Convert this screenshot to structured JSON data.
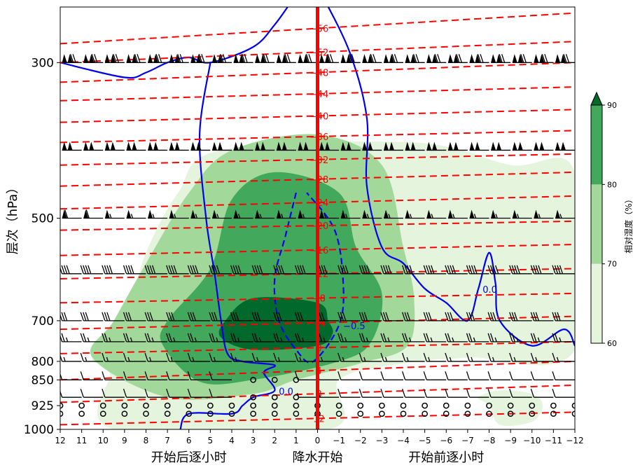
{
  "chart_data": {
    "type": "contour",
    "ylabel": "层次（hPa）",
    "y_scale": "log",
    "y_reversed": true,
    "ylim": [
      1000,
      250
    ],
    "y_ticks": [
      300,
      500,
      700,
      800,
      850,
      925,
      1000
    ],
    "xlim": [
      12,
      -12
    ],
    "x_ticks": [
      12,
      11,
      10,
      9,
      8,
      7,
      6,
      5,
      4,
      3,
      2,
      1,
      0,
      -1,
      -2,
      -3,
      -4,
      -5,
      -6,
      -7,
      -8,
      -9,
      -10,
      -11,
      -12
    ],
    "x_tick_labels": [
      "12",
      "11",
      "10",
      "9",
      "8",
      "7",
      "6",
      "5",
      "4",
      "3",
      "2",
      "1",
      "0",
      "−1",
      "−2",
      "−3",
      "−4",
      "−5",
      "−6",
      "−7",
      "−8",
      "−9",
      "−10",
      "−11",
      "−12"
    ],
    "x_section_labels": [
      "开始后逐小时",
      "降水开始",
      "开始前逐小时"
    ],
    "onset_line_x": 0,
    "onset_line_color": "#ff0000",
    "colorbar": {
      "label": "相对湿度（%）",
      "levels": [
        60,
        70,
        80,
        90
      ],
      "colors": [
        "#e4f4dd",
        "#a2d89a",
        "#41a85c",
        "#00692b"
      ],
      "extend": "max"
    },
    "humidity_fill": [
      {
        "level": 60,
        "polygon": [
          [
            9.5,
            1000
          ],
          [
            9.7,
            830
          ],
          [
            10.5,
            790
          ],
          [
            9,
            700
          ],
          [
            8,
            560
          ],
          [
            6.5,
            460
          ],
          [
            4.5,
            400
          ],
          [
            -4.5,
            390
          ],
          [
            -9,
            420
          ],
          [
            -12,
            430
          ],
          [
            -12,
            770
          ],
          [
            -7,
            790
          ],
          [
            -4,
            805
          ],
          [
            -1,
            850
          ],
          [
            -0.5,
            1000
          ]
        ]
      },
      {
        "level": 70,
        "polygon": [
          [
            7,
            900
          ],
          [
            10.5,
            790
          ],
          [
            9.5,
            700
          ],
          [
            8,
            580
          ],
          [
            6,
            460
          ],
          [
            4,
            400
          ],
          [
            0,
            380
          ],
          [
            -3,
            420
          ],
          [
            -4,
            550
          ],
          [
            -4.5,
            650
          ],
          [
            -4.2,
            760
          ],
          [
            -2,
            805
          ],
          [
            1,
            850
          ],
          [
            3,
            890
          ]
        ]
      },
      {
        "level": 80,
        "polygon": [
          [
            5.5,
            855
          ],
          [
            7.2,
            760
          ],
          [
            7,
            700
          ],
          [
            5,
            590
          ],
          [
            4,
            470
          ],
          [
            2,
            430
          ],
          [
            -1,
            460
          ],
          [
            -1.8,
            550
          ],
          [
            -3,
            640
          ],
          [
            -2.5,
            750
          ],
          [
            -1,
            800
          ],
          [
            3,
            850
          ]
        ]
      },
      {
        "level": 90,
        "polygon": [
          [
            4.5,
            740
          ],
          [
            4.3,
            700
          ],
          [
            3,
            650
          ],
          [
            0,
            660
          ],
          [
            -0.5,
            700
          ],
          [
            -0.7,
            730
          ],
          [
            0,
            760
          ],
          [
            3,
            770
          ]
        ]
      },
      {
        "level": 60,
        "polygon": [
          [
            -8,
            925
          ],
          [
            -7.5,
            900
          ],
          [
            -8.5,
            880
          ],
          [
            -10,
            890
          ],
          [
            -10.5,
            925
          ],
          [
            -10,
            975
          ],
          [
            -8.5,
            985
          ]
        ]
      }
    ],
    "temperature_isotherms": [
      {
        "value": -56,
        "points": [
          [
            12,
            282
          ],
          [
            -12,
            255
          ]
        ],
        "label": "−56"
      },
      {
        "value": -52,
        "points": [
          [
            12,
            300
          ],
          [
            -12,
            280
          ]
        ],
        "label": "−52"
      },
      {
        "value": -48,
        "points": [
          [
            12,
            320
          ],
          [
            -12,
            300
          ]
        ],
        "label": "−48"
      },
      {
        "value": -44,
        "points": [
          [
            12,
            340
          ],
          [
            -12,
            325
          ]
        ],
        "label": "−44"
      },
      {
        "value": -40,
        "points": [
          [
            12,
            365
          ],
          [
            -12,
            350
          ]
        ],
        "label": "−40"
      },
      {
        "value": -36,
        "points": [
          [
            12,
            390
          ],
          [
            -12,
            375
          ]
        ],
        "label": "−36"
      },
      {
        "value": -32,
        "points": [
          [
            12,
            420
          ],
          [
            -12,
            405
          ]
        ],
        "label": "−32"
      },
      {
        "value": -28,
        "points": [
          [
            12,
            450
          ],
          [
            -12,
            430
          ]
        ],
        "label": "−28"
      },
      {
        "value": -24,
        "points": [
          [
            12,
            485
          ],
          [
            -12,
            465
          ]
        ],
        "label": "−24"
      },
      {
        "value": -20,
        "points": [
          [
            12,
            520
          ],
          [
            -12,
            505
          ]
        ],
        "label": "−20"
      },
      {
        "value": -16,
        "points": [
          [
            12,
            565
          ],
          [
            -12,
            545
          ]
        ],
        "label": "−16"
      },
      {
        "value": -12,
        "points": [
          [
            12,
            610
          ],
          [
            -12,
            590
          ]
        ],
        "label": "−12"
      },
      {
        "value": -8,
        "points": [
          [
            12,
            660
          ],
          [
            -12,
            640
          ]
        ],
        "label": "−8"
      },
      {
        "value": -4,
        "points": [
          [
            12,
            720
          ],
          [
            -12,
            690
          ]
        ],
        "label": "−4"
      },
      {
        "value": 0,
        "points": [
          [
            12,
            780
          ],
          [
            -12,
            750
          ]
        ],
        "label": "0"
      },
      {
        "value": 4,
        "points": [
          [
            12,
            850
          ],
          [
            -12,
            800
          ]
        ],
        "label": "4"
      },
      {
        "value": 8,
        "points": [
          [
            12,
            915
          ],
          [
            -12,
            865
          ]
        ],
        "label": "8"
      },
      {
        "value": 12,
        "points": [
          [
            12,
            985
          ],
          [
            -12,
            945
          ]
        ],
        "label": "12"
      }
    ],
    "omega_contours": [
      {
        "value": 0.0,
        "dashed": false,
        "points": [
          [
            1,
            240
          ],
          [
            2,
            265
          ],
          [
            3,
            285
          ],
          [
            5,
            300
          ],
          [
            6,
            295
          ],
          [
            7,
            300
          ],
          [
            8,
            310
          ],
          [
            9,
            315
          ],
          [
            12,
            300
          ]
        ],
        "label": ""
      },
      {
        "value": 0.0,
        "dashed": false,
        "points": [
          [
            -0.2,
            240
          ],
          [
            -1.5,
            290
          ],
          [
            -2.3,
            360
          ],
          [
            -2.3,
            450
          ],
          [
            -3,
            550
          ],
          [
            -4,
            580
          ],
          [
            -5,
            630
          ],
          [
            -6,
            660
          ],
          [
            -7,
            700
          ],
          [
            -7.5,
            630
          ],
          [
            -8,
            560
          ],
          [
            -8.3,
            620
          ],
          [
            -8.5,
            700
          ],
          [
            -10,
            760
          ],
          [
            -11.5,
            720
          ],
          [
            -12,
            760
          ]
        ],
        "label": "0.0"
      },
      {
        "value": 0.0,
        "dashed": false,
        "points": [
          [
            5,
            300
          ],
          [
            5.5,
            380
          ],
          [
            5.2,
            500
          ],
          [
            4.8,
            600
          ],
          [
            4.5,
            700
          ],
          [
            4.2,
            780
          ],
          [
            3.5,
            800
          ],
          [
            2,
            810
          ],
          [
            2.5,
            830
          ],
          [
            2,
            880
          ],
          [
            3,
            900
          ],
          [
            3.5,
            925
          ],
          [
            4,
            950
          ],
          [
            6,
            950
          ],
          [
            6.4,
            1000
          ]
        ],
        "label": "0.0"
      },
      {
        "value": -0.5,
        "dashed": true,
        "points": [
          [
            1,
            460
          ],
          [
            1.5,
            530
          ],
          [
            2,
            610
          ],
          [
            1.8,
            700
          ],
          [
            1,
            770
          ],
          [
            0.2,
            800
          ],
          [
            -1,
            710
          ],
          [
            -1.2,
            620
          ],
          [
            -0.8,
            520
          ],
          [
            0.5,
            460
          ]
        ],
        "label": "−0.5"
      }
    ],
    "wind_barbs": {
      "x": [
        12,
        11,
        10,
        9,
        8,
        7,
        6,
        5,
        4,
        3,
        2,
        1,
        0,
        -1,
        -2,
        -3,
        -4,
        -5,
        -6,
        -7,
        -8,
        -9,
        -10,
        -11,
        -12
      ],
      "levels": [
        300,
        400,
        500,
        600,
        700,
        750,
        800,
        850,
        900,
        925,
        950,
        1000
      ],
      "speed_knots": [
        [
          120,
          120,
          120,
          120,
          120,
          120,
          120,
          120,
          120,
          120,
          120,
          120,
          120,
          120,
          120,
          120,
          120,
          120,
          120,
          120,
          120,
          120,
          120,
          120,
          120
        ],
        [
          100,
          100,
          100,
          100,
          100,
          100,
          100,
          100,
          100,
          100,
          100,
          100,
          100,
          100,
          100,
          100,
          100,
          100,
          100,
          100,
          100,
          100,
          100,
          100,
          100
        ],
        [
          60,
          60,
          60,
          55,
          55,
          55,
          55,
          55,
          55,
          55,
          55,
          55,
          55,
          55,
          55,
          55,
          55,
          55,
          55,
          55,
          55,
          55,
          55,
          55,
          55
        ],
        [
          40,
          40,
          40,
          40,
          40,
          40,
          40,
          40,
          40,
          40,
          40,
          40,
          40,
          40,
          40,
          40,
          40,
          40,
          40,
          40,
          40,
          40,
          40,
          40,
          40
        ],
        [
          30,
          30,
          30,
          30,
          30,
          30,
          30,
          30,
          30,
          30,
          30,
          30,
          30,
          30,
          30,
          30,
          30,
          30,
          30,
          30,
          30,
          30,
          30,
          30,
          30
        ],
        [
          25,
          25,
          25,
          25,
          25,
          25,
          25,
          25,
          25,
          25,
          25,
          25,
          25,
          25,
          25,
          25,
          25,
          25,
          25,
          25,
          25,
          25,
          25,
          25,
          25
        ],
        [
          15,
          15,
          15,
          15,
          15,
          15,
          15,
          15,
          15,
          15,
          15,
          15,
          15,
          15,
          15,
          15,
          15,
          15,
          15,
          15,
          15,
          15,
          15,
          15,
          15
        ],
        [
          10,
          10,
          10,
          10,
          10,
          10,
          10,
          10,
          10,
          0,
          0,
          0,
          10,
          10,
          10,
          10,
          10,
          10,
          10,
          10,
          10,
          10,
          10,
          10,
          10
        ],
        [
          10,
          10,
          10,
          10,
          10,
          10,
          10,
          10,
          10,
          0,
          0,
          0,
          5,
          5,
          10,
          10,
          10,
          10,
          10,
          10,
          10,
          10,
          10,
          10,
          10
        ],
        [
          0,
          0,
          0,
          0,
          0,
          0,
          0,
          0,
          0,
          0,
          0,
          0,
          0,
          0,
          0,
          0,
          0,
          0,
          0,
          0,
          0,
          0,
          0,
          0,
          0
        ],
        [
          0,
          0,
          0,
          0,
          0,
          0,
          0,
          0,
          0,
          0,
          0,
          0,
          0,
          0,
          0,
          0,
          0,
          0,
          0,
          0,
          0,
          0,
          0,
          0,
          0
        ],
        [
          0,
          0,
          0,
          0,
          0,
          0,
          0,
          0,
          0,
          0,
          0,
          0,
          0,
          0,
          0,
          0,
          0,
          0,
          0,
          0,
          0,
          0,
          0,
          0,
          0
        ]
      ],
      "direction_deg": 270
    }
  }
}
